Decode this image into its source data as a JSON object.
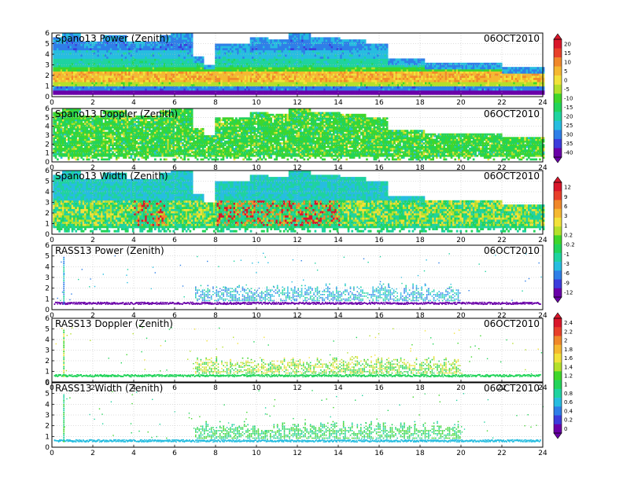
{
  "chart_data": {
    "type": "heatmap",
    "x_ticks": [
      "0",
      "2",
      "4",
      "6",
      "8",
      "10",
      "12",
      "14",
      "16",
      "18",
      "20",
      "22",
      "24"
    ],
    "y_ticks": [
      "0",
      "1",
      "2",
      "3",
      "4",
      "5",
      "6"
    ],
    "xlim": [
      0,
      24
    ],
    "ylim": [
      0,
      6
    ],
    "grid": true,
    "panels": [
      {
        "title": "Spano13 Power (Zenith)",
        "date": "06OCT2010",
        "kind": "spano-power",
        "colorbar": "power"
      },
      {
        "title": "Spano13 Doppler (Zenith)",
        "date": "06OCT2010",
        "kind": "spano-doppler",
        "colorbar": "power"
      },
      {
        "title": "Spano13 Width (Zenith)",
        "date": "06OCT2010",
        "kind": "spano-width",
        "colorbar": "width"
      },
      {
        "title": "RASS13 Power (Zenith)",
        "date": "06OCT2010",
        "kind": "rass-power",
        "colorbar": "width"
      },
      {
        "title": "RASS13 Doppler (Zenith)",
        "date": "06OCT2010",
        "kind": "rass-doppler",
        "colorbar": "rass"
      },
      {
        "title": "RASS13 Width (Zenith)",
        "date": "06OCT2010",
        "kind": "rass-width",
        "colorbar": "rass"
      }
    ],
    "colorbars": [
      {
        "id": "power",
        "labels": [
          "20",
          "15",
          "10",
          "5",
          "0",
          "-5",
          "-10",
          "-15",
          "-20",
          "-25",
          "-30",
          "-35",
          "-40"
        ]
      },
      {
        "id": "width",
        "labels": [
          "12",
          "9",
          "6",
          "3",
          "1",
          "0.2",
          "-0.2",
          "-1",
          "-3",
          "-6",
          "-9",
          "-12"
        ]
      },
      {
        "id": "rass",
        "labels": [
          "2.4",
          "2.2",
          "2",
          "1.8",
          "1.6",
          "1.4",
          "1.2",
          "1",
          "0.8",
          "0.6",
          "0.4",
          "0.2",
          "0"
        ]
      }
    ],
    "colors": [
      "#6a00a8",
      "#3c3cdc",
      "#2f7fe8",
      "#27bde0",
      "#1fd3a0",
      "#22d45a",
      "#3fd62a",
      "#b4e02a",
      "#f2e23a",
      "#f5b830",
      "#f0882a",
      "#e8402a",
      "#d9162a"
    ]
  }
}
